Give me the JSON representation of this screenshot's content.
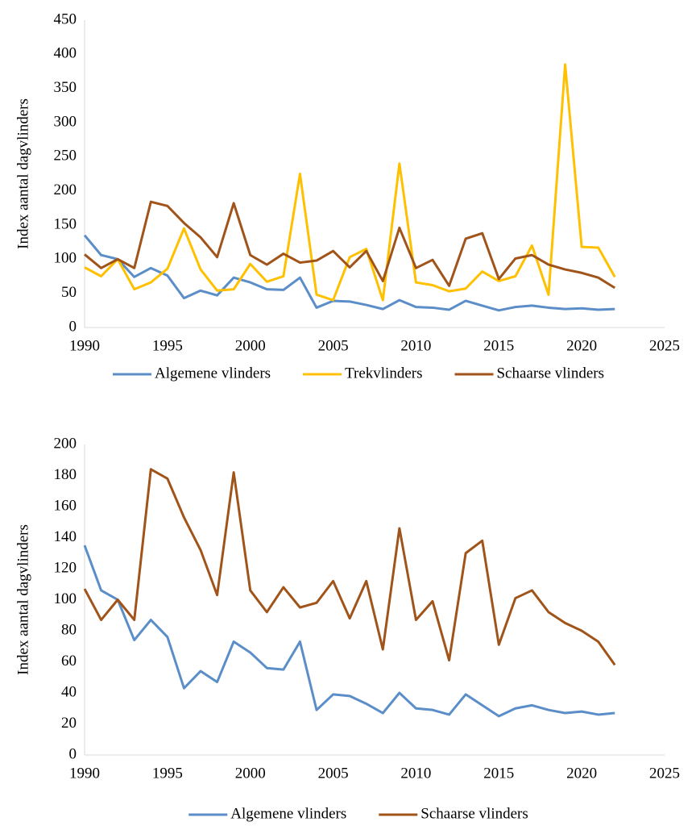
{
  "chart_data": [
    {
      "type": "line",
      "ylabel": "Index aantal dagvlinders",
      "x": [
        1990,
        1991,
        1992,
        1993,
        1994,
        1995,
        1996,
        1997,
        1998,
        1999,
        2000,
        2001,
        2002,
        2003,
        2004,
        2005,
        2006,
        2007,
        2008,
        2009,
        2010,
        2011,
        2012,
        2013,
        2014,
        2015,
        2016,
        2017,
        2018,
        2019,
        2020,
        2021,
        2022
      ],
      "series": [
        {
          "name": "Algemene vlinders",
          "color": "#5b8ec8",
          "values": [
            135,
            106,
            100,
            74,
            87,
            76,
            43,
            54,
            47,
            73,
            66,
            56,
            55,
            73,
            29,
            39,
            38,
            33,
            27,
            40,
            30,
            29,
            26,
            39,
            32,
            25,
            30,
            32,
            29,
            27,
            28,
            26,
            27
          ]
        },
        {
          "name": "Trekvlinders",
          "color": "#ffc000",
          "values": [
            88,
            75,
            100,
            56,
            66,
            86,
            145,
            85,
            54,
            56,
            93,
            67,
            75,
            225,
            48,
            40,
            103,
            115,
            40,
            240,
            66,
            62,
            53,
            57,
            82,
            68,
            75,
            120,
            48,
            385,
            118,
            117,
            74
          ]
        },
        {
          "name": "Schaarse vlinders",
          "color": "#a0541a",
          "values": [
            107,
            87,
            100,
            87,
            184,
            178,
            153,
            132,
            103,
            182,
            106,
            92,
            108,
            95,
            98,
            112,
            88,
            112,
            68,
            146,
            87,
            99,
            61,
            130,
            138,
            71,
            101,
            106,
            92,
            85,
            80,
            73,
            58
          ]
        }
      ],
      "xlim": [
        1990,
        2025
      ],
      "xticks": [
        1990,
        1995,
        2000,
        2005,
        2010,
        2015,
        2020,
        2025
      ],
      "ylim": [
        0,
        450
      ],
      "yticks": [
        0,
        50,
        100,
        150,
        200,
        250,
        300,
        350,
        400,
        450
      ],
      "grid": false,
      "legend": "bottom"
    },
    {
      "type": "line",
      "ylabel": "Index aantal dagvlinders",
      "x": [
        1990,
        1991,
        1992,
        1993,
        1994,
        1995,
        1996,
        1997,
        1998,
        1999,
        2000,
        2001,
        2002,
        2003,
        2004,
        2005,
        2006,
        2007,
        2008,
        2009,
        2010,
        2011,
        2012,
        2013,
        2014,
        2015,
        2016,
        2017,
        2018,
        2019,
        2020,
        2021,
        2022
      ],
      "series": [
        {
          "name": "Algemene vlinders",
          "color": "#5b8ec8",
          "values": [
            135,
            106,
            100,
            74,
            87,
            76,
            43,
            54,
            47,
            73,
            66,
            56,
            55,
            73,
            29,
            39,
            38,
            33,
            27,
            40,
            30,
            29,
            26,
            39,
            32,
            25,
            30,
            32,
            29,
            27,
            28,
            26,
            27
          ]
        },
        {
          "name": "Schaarse vlinders",
          "color": "#a0541a",
          "values": [
            107,
            87,
            100,
            87,
            184,
            178,
            153,
            132,
            103,
            182,
            106,
            92,
            108,
            95,
            98,
            112,
            88,
            112,
            68,
            146,
            87,
            99,
            61,
            130,
            138,
            71,
            101,
            106,
            92,
            85,
            80,
            73,
            58
          ]
        }
      ],
      "xlim": [
        1990,
        2025
      ],
      "xticks": [
        1990,
        1995,
        2000,
        2005,
        2010,
        2015,
        2020,
        2025
      ],
      "ylim": [
        0,
        200
      ],
      "yticks": [
        0,
        20,
        40,
        60,
        80,
        100,
        120,
        140,
        160,
        180,
        200
      ],
      "grid": false,
      "legend": "bottom"
    }
  ]
}
